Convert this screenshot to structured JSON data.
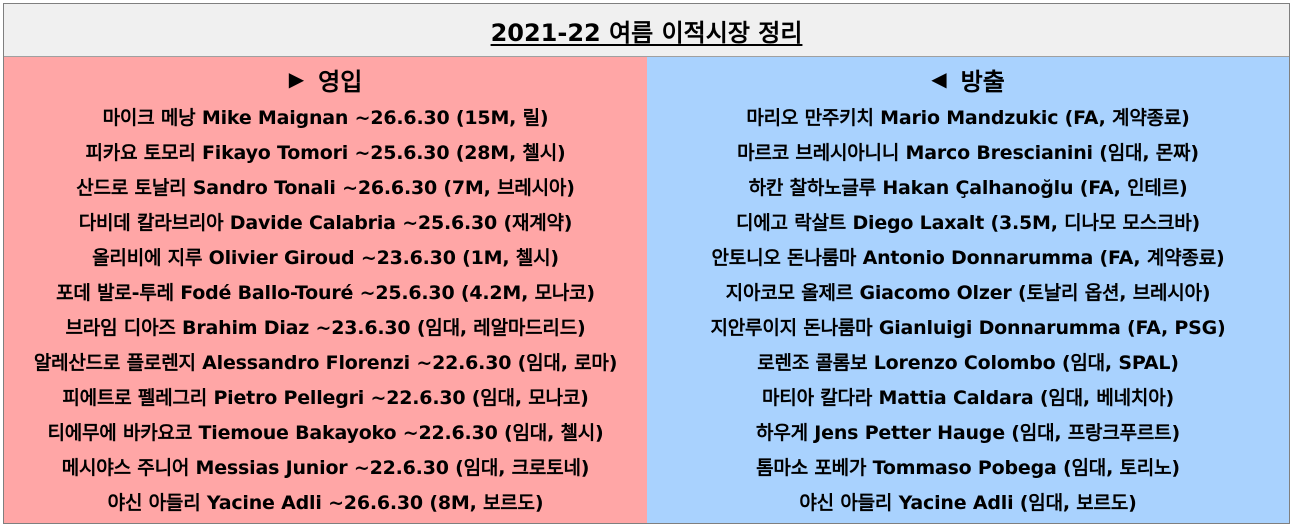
{
  "title": "2021-22 여름 이적시장 정리",
  "incoming": {
    "header_icon": "play-right-triangle",
    "header_glyph": "▶",
    "header": "영입",
    "items": [
      "마이크 메낭 Mike Maignan  ~26.6.30 (15M, 릴)",
      "피카요 토모리 Fikayo Tomori ~25.6.30 (28M, 첼시)",
      "산드로 토날리 Sandro Tonali ~26.6.30 (7M, 브레시아)",
      "다비데 칼라브리아 Davide Calabria ~25.6.30 (재계약)",
      "올리비에 지루 Olivier Giroud ~23.6.30 (1M, 첼시)",
      "포데 발로-투레 Fodé Ballo-Touré ~25.6.30 (4.2M, 모나코)",
      "브라임 디아즈 Brahim Diaz ~23.6.30 (임대, 레알마드리드)",
      "알레산드로 플로렌지 Alessandro Florenzi ~22.6.30 (임대, 로마)",
      "피에트로 펠레그리 Pietro Pellegri ~22.6.30 (임대, 모나코)",
      "티에무에 바카요코 Tiemoue Bakayoko ~22.6.30 (임대, 첼시)",
      "메시야스 주니어 Messias Junior ~22.6.30 (임대, 크로토네)",
      "야신 아들리 Yacine Adli ~26.6.30 (8M, 보르도)"
    ]
  },
  "outgoing": {
    "header_icon": "play-left-triangle",
    "header_glyph": "◀",
    "header": "방출",
    "items": [
      "마리오 만주키치 Mario Mandzukic (FA, 계약종료)",
      "마르코 브레시아니니 Marco Brescianini (임대, 몬짜)",
      "하칸 찰하노글루 Hakan Çalhanoğlu (FA, 인테르)",
      "디에고 락살트 Diego Laxalt (3.5M, 디나모 모스크바)",
      "안토니오 돈나룸마 Antonio Donnarumma (FA, 계약종료)",
      "지아코모 올제르 Giacomo Olzer (토날리 옵션, 브레시아)",
      "지안루이지 돈나룸마 Gianluigi Donnarumma (FA, PSG)",
      "로렌조 콜롬보 Lorenzo Colombo (임대, SPAL)",
      "마티아 칼다라 Mattia Caldara (임대, 베네치아)",
      "하우게 Jens Petter Hauge (임대, 프랑크푸르트)",
      "톰마소 포베가 Tommaso Pobega (임대, 토리노)",
      "야신 아들리 Yacine Adli (임대, 보르도)"
    ]
  }
}
